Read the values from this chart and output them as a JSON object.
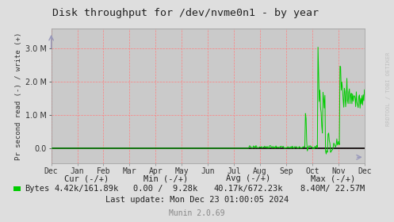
{
  "title": "Disk throughput for /dev/nvme0n1 - by year",
  "ylabel": "Pr second read (-) / write (+)",
  "watermark": "RRDTOOL / TOBI OETIKER",
  "munin_version": "Munin 2.0.69",
  "legend_label": "Bytes",
  "stats_cur": "4.42k/161.89k",
  "stats_min": "0.00 /  9.28k",
  "stats_avg": "40.17k/672.23k",
  "stats_max": "8.40M/ 22.57M",
  "last_update": "Last update: Mon Dec 23 01:00:05 2024",
  "bg_color": "#dedede",
  "plot_bg_color": "#cacaca",
  "grid_color": "#ff8080",
  "line_color": "#00cc00",
  "zero_line_color": "#000000",
  "x_tick_labels": [
    "Dec",
    "Jan",
    "Feb",
    "Mar",
    "Apr",
    "May",
    "Jun",
    "Jul",
    "Aug",
    "Sep",
    "Oct",
    "Nov",
    "Dec"
  ],
  "yticks": [
    0,
    1000000,
    2000000,
    3000000
  ],
  "ylim": [
    -450000,
    3600000
  ],
  "watermark_color": "#bbbbbb",
  "tick_color": "#333333",
  "text_color": "#222222",
  "arrow_color": "#9999bb"
}
